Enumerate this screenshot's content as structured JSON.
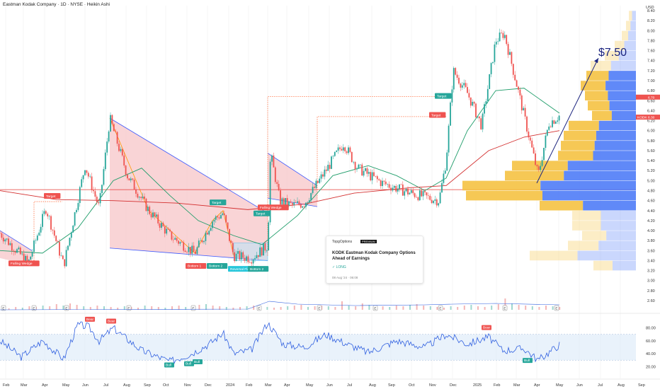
{
  "header": {
    "title": "Eastman Kodak Company · 1D · NYSE · Heikin Ashi"
  },
  "chart_data": {
    "type": "candlestick",
    "currency": "USD",
    "x_ticks": [
      "Feb",
      "Mar",
      "Apr",
      "May",
      "Jun",
      "Jul",
      "Aug",
      "Sep",
      "Oct",
      "Nov",
      "Dec",
      "2024",
      "Feb",
      "Mar",
      "Apr",
      "May",
      "Jun",
      "Jul",
      "Aug",
      "Sep",
      "Oct",
      "Nov",
      "Dec",
      "2025",
      "Feb",
      "Mar",
      "Apr",
      "May",
      "Jun",
      "Jul",
      "Aug",
      "Sep"
    ],
    "price_ticks": [
      "8.40",
      "8.20",
      "8.00",
      "7.80",
      "7.60",
      "7.40",
      "7.20",
      "7.00",
      "6.80",
      "6.60",
      "6.40",
      "6.20",
      "6.00",
      "5.80",
      "5.60",
      "5.40",
      "5.20",
      "5.00",
      "4.80",
      "4.60",
      "4.40",
      "4.20",
      "4.00",
      "3.80",
      "3.60",
      "3.40",
      "3.20",
      "3.00",
      "2.80",
      "2.60"
    ],
    "rsi_ticks": [
      "80.00",
      "60.00",
      "40.00",
      "20.00"
    ],
    "ylim": [
      2.6,
      8.5
    ],
    "current_price": "6.30",
    "ma_label": "6.70",
    "badge": "KODK",
    "projection_label": "$7.50",
    "levels": {
      "horizontal_line": 4.82,
      "target_hline_1": 6.68,
      "target_hline_2": 6.28,
      "target_hline_3": 4.58
    },
    "price_series": [
      {
        "d": 0,
        "p": 3.95
      },
      {
        "d": 40,
        "p": 3.35
      },
      {
        "d": 65,
        "p": 4.45
      },
      {
        "d": 90,
        "p": 3.3
      },
      {
        "d": 120,
        "p": 5.3
      },
      {
        "d": 140,
        "p": 4.45
      },
      {
        "d": 155,
        "p": 6.25
      },
      {
        "d": 180,
        "p": 5.1
      },
      {
        "d": 210,
        "p": 4.4
      },
      {
        "d": 240,
        "p": 3.9
      },
      {
        "d": 275,
        "p": 3.55
      },
      {
        "d": 300,
        "p": 4.2
      },
      {
        "d": 315,
        "p": 4.35
      },
      {
        "d": 330,
        "p": 3.5
      },
      {
        "d": 355,
        "p": 3.45
      },
      {
        "d": 378,
        "p": 3.7
      },
      {
        "d": 382,
        "p": 5.55
      },
      {
        "d": 395,
        "p": 4.6
      },
      {
        "d": 412,
        "p": 4.5
      },
      {
        "d": 430,
        "p": 4.55
      },
      {
        "d": 460,
        "p": 5.2
      },
      {
        "d": 485,
        "p": 5.75
      },
      {
        "d": 505,
        "p": 5.25
      },
      {
        "d": 540,
        "p": 4.95
      },
      {
        "d": 580,
        "p": 4.75
      },
      {
        "d": 620,
        "p": 4.6
      },
      {
        "d": 630,
        "p": 5.4
      },
      {
        "d": 640,
        "p": 7.2
      },
      {
        "d": 660,
        "p": 6.75
      },
      {
        "d": 680,
        "p": 6.1
      },
      {
        "d": 700,
        "p": 7.8
      },
      {
        "d": 712,
        "p": 7.95
      },
      {
        "d": 730,
        "p": 6.9
      },
      {
        "d": 760,
        "p": 5.1
      },
      {
        "d": 775,
        "p": 6.15
      },
      {
        "d": 790,
        "p": 6.3
      }
    ],
    "ma_fast": [
      {
        "d": 0,
        "p": 3.6
      },
      {
        "d": 60,
        "p": 3.55
      },
      {
        "d": 110,
        "p": 4.05
      },
      {
        "d": 160,
        "p": 5.0
      },
      {
        "d": 200,
        "p": 5.25
      },
      {
        "d": 240,
        "p": 4.7
      },
      {
        "d": 280,
        "p": 4.2
      },
      {
        "d": 330,
        "p": 3.9
      },
      {
        "d": 370,
        "p": 3.72
      },
      {
        "d": 420,
        "p": 4.3
      },
      {
        "d": 470,
        "p": 5.1
      },
      {
        "d": 520,
        "p": 5.3
      },
      {
        "d": 560,
        "p": 5.1
      },
      {
        "d": 600,
        "p": 4.8
      },
      {
        "d": 630,
        "p": 5.05
      },
      {
        "d": 660,
        "p": 6.0
      },
      {
        "d": 700,
        "p": 6.8
      },
      {
        "d": 740,
        "p": 6.85
      },
      {
        "d": 770,
        "p": 6.55
      },
      {
        "d": 790,
        "p": 6.35
      }
    ],
    "ma_slow": [
      {
        "d": 0,
        "p": 4.8
      },
      {
        "d": 80,
        "p": 4.62
      },
      {
        "d": 160,
        "p": 4.6
      },
      {
        "d": 250,
        "p": 4.55
      },
      {
        "d": 350,
        "p": 4.42
      },
      {
        "d": 430,
        "p": 4.53
      },
      {
        "d": 500,
        "p": 4.75
      },
      {
        "d": 580,
        "p": 4.86
      },
      {
        "d": 630,
        "p": 4.9
      },
      {
        "d": 690,
        "p": 5.6
      },
      {
        "d": 740,
        "p": 5.87
      },
      {
        "d": 790,
        "p": 6.0
      }
    ],
    "volume_profile": [
      {
        "p": 8.3,
        "w": 10
      },
      {
        "p": 8.1,
        "w": 14
      },
      {
        "p": 7.9,
        "w": 20
      },
      {
        "p": 7.7,
        "w": 30
      },
      {
        "p": 7.5,
        "w": 44
      },
      {
        "p": 7.3,
        "w": 64
      },
      {
        "p": 7.1,
        "w": 70
      },
      {
        "p": 6.9,
        "w": 78
      },
      {
        "p": 6.7,
        "w": 72
      },
      {
        "p": 6.5,
        "w": 68
      },
      {
        "p": 6.3,
        "w": 62
      },
      {
        "p": 6.1,
        "w": 95
      },
      {
        "p": 5.9,
        "w": 102
      },
      {
        "p": 5.7,
        "w": 106
      },
      {
        "p": 5.5,
        "w": 110
      },
      {
        "p": 5.3,
        "w": 175
      },
      {
        "p": 5.1,
        "w": 185
      },
      {
        "p": 4.9,
        "w": 245
      },
      {
        "p": 4.7,
        "w": 240
      },
      {
        "p": 4.5,
        "w": 136
      },
      {
        "p": 4.3,
        "w": 90
      },
      {
        "p": 4.1,
        "w": 90
      },
      {
        "p": 3.9,
        "w": 76
      },
      {
        "p": 3.7,
        "w": 96
      },
      {
        "p": 3.5,
        "w": 150
      },
      {
        "p": 3.3,
        "w": 60
      }
    ],
    "rsi_series": [
      {
        "d": 0,
        "v": 60
      },
      {
        "d": 30,
        "v": 35
      },
      {
        "d": 60,
        "v": 60
      },
      {
        "d": 90,
        "v": 32
      },
      {
        "d": 110,
        "v": 85
      },
      {
        "d": 125,
        "v": 82
      },
      {
        "d": 140,
        "v": 60
      },
      {
        "d": 160,
        "v": 80
      },
      {
        "d": 200,
        "v": 45
      },
      {
        "d": 240,
        "v": 28
      },
      {
        "d": 270,
        "v": 40
      },
      {
        "d": 295,
        "v": 55
      },
      {
        "d": 315,
        "v": 72
      },
      {
        "d": 330,
        "v": 40
      },
      {
        "d": 355,
        "v": 46
      },
      {
        "d": 378,
        "v": 88
      },
      {
        "d": 400,
        "v": 55
      },
      {
        "d": 430,
        "v": 50
      },
      {
        "d": 460,
        "v": 70
      },
      {
        "d": 490,
        "v": 55
      },
      {
        "d": 520,
        "v": 42
      },
      {
        "d": 560,
        "v": 60
      },
      {
        "d": 600,
        "v": 50
      },
      {
        "d": 630,
        "v": 70
      },
      {
        "d": 660,
        "v": 55
      },
      {
        "d": 690,
        "v": 66
      },
      {
        "d": 710,
        "v": 45
      },
      {
        "d": 740,
        "v": 48
      },
      {
        "d": 760,
        "v": 30
      },
      {
        "d": 790,
        "v": 54
      }
    ],
    "labels": [
      "Falling Wedge",
      "Target",
      "Target",
      "Target",
      "Bottom 1",
      "Bottom 2",
      "Falling Wedge",
      "Reversal Flag",
      "Bottom 2",
      "Target",
      "Target",
      "Bear",
      "Bear",
      "Bull",
      "Bull",
      "Bull",
      "Bear",
      "Bull"
    ],
    "events": [
      "E",
      "E",
      "E",
      "E",
      "E",
      "E",
      "E",
      "E",
      "E",
      "E",
      "E",
      "E",
      "E",
      "E"
    ],
    "volume_bars": [
      3,
      2,
      4,
      3,
      5,
      4,
      6,
      5,
      8,
      6,
      9,
      7,
      5,
      4,
      6,
      5,
      4,
      3,
      5,
      4,
      3,
      6,
      5,
      4,
      3,
      5,
      6,
      4,
      5,
      7,
      8,
      6,
      5,
      4,
      3,
      4,
      5,
      6,
      5,
      4,
      3,
      4,
      5,
      6,
      7,
      4,
      5,
      6,
      5,
      4,
      12,
      6,
      5,
      9,
      7,
      6,
      5,
      4,
      6,
      5,
      7,
      8,
      6,
      5,
      4,
      3,
      5,
      4,
      6,
      7,
      5,
      4,
      6,
      8,
      16,
      9,
      7,
      6,
      5,
      4,
      6,
      5,
      4
    ]
  },
  "news_card": {
    "brand": "TopgOptions",
    "badge": "PREMIUM",
    "title": "KODK Eastman Kodak Company Options Ahead of Earnings",
    "signal": "LONG",
    "date": "08 Aug '24 · 06:08"
  },
  "colors": {
    "bull": "#26a69a",
    "bear": "#ef5350",
    "ma_fast": "#1f9d6a",
    "ma_slow": "#d32f2f",
    "wedge_fill": "#f8c9cc",
    "wedge_line": "#3d5afe",
    "zigzag": "#ff9800",
    "vp_up": "#f5c242",
    "vp_down": "#4f7cf7",
    "rsi_line": "#2f5fe0",
    "rsi_band": "#dbeaf8",
    "projection": "#1a237e",
    "hline": "#e53935"
  }
}
